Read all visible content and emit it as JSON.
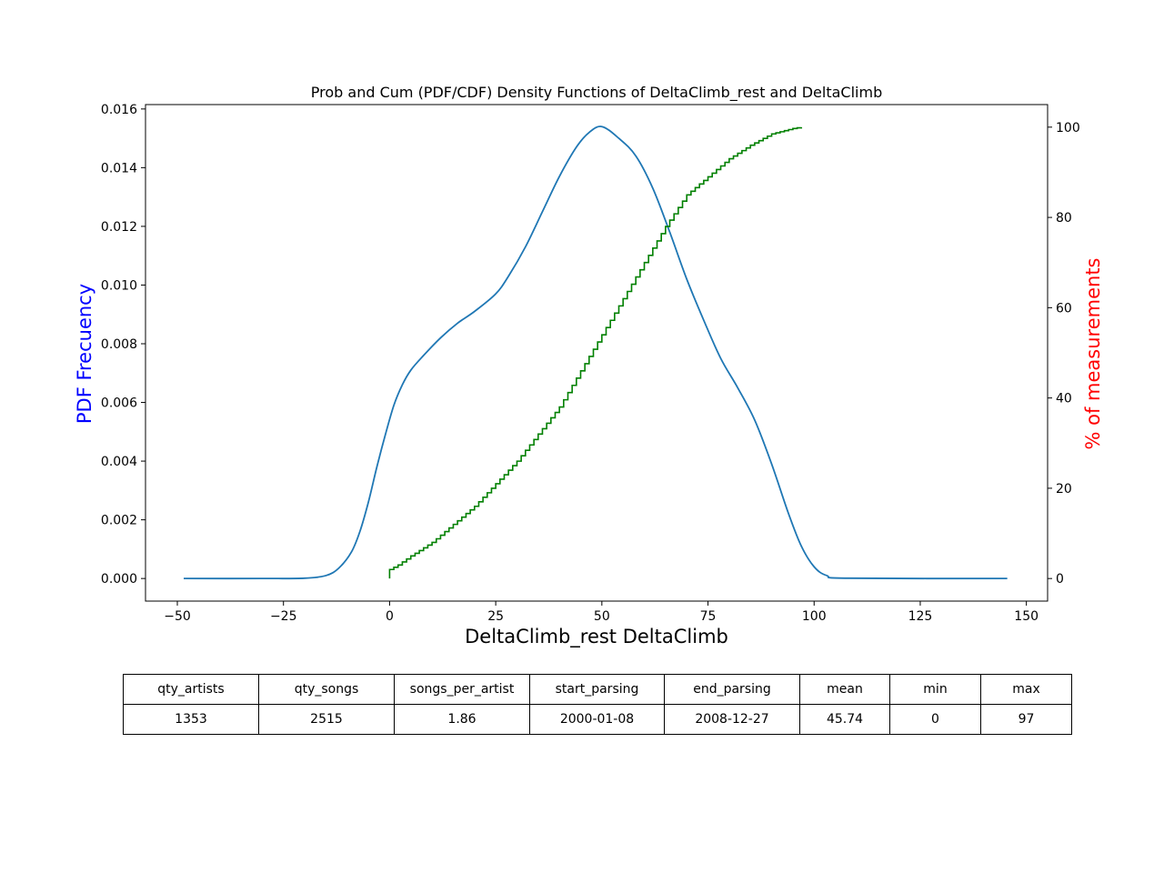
{
  "chart_data": {
    "type": "line",
    "title": "Prob and Cum (PDF/CDF) Density Functions of DeltaClimb_rest and DeltaClimb",
    "xlabel": "DeltaClimb_rest DeltaClimb",
    "ylabel_left": "PDF Frecuency",
    "ylabel_right": "% of measurements",
    "xlim": [
      -57.5,
      155
    ],
    "ylim_left": [
      -0.00077,
      0.01615
    ],
    "ylim_right": [
      -5,
      105
    ],
    "x_ticks": [
      -50,
      -25,
      0,
      25,
      50,
      75,
      100,
      125,
      150
    ],
    "x_tick_labels": [
      "−50",
      "−25",
      "0",
      "25",
      "50",
      "75",
      "100",
      "125",
      "150"
    ],
    "y_left_ticks": [
      0.0,
      0.002,
      0.004,
      0.006,
      0.008,
      0.01,
      0.012,
      0.014,
      0.016
    ],
    "y_left_tick_labels": [
      "0.000",
      "0.002",
      "0.004",
      "0.006",
      "0.008",
      "0.010",
      "0.012",
      "0.014",
      "0.016"
    ],
    "y_right_ticks": [
      0,
      20,
      40,
      60,
      80,
      100
    ],
    "y_right_tick_labels": [
      "0",
      "20",
      "40",
      "60",
      "80",
      "100"
    ],
    "grid": false,
    "series": [
      {
        "axis": "left",
        "color": "#1f77b4",
        "points": [
          [
            -48.5,
            0
          ],
          [
            -30,
            0
          ],
          [
            -20,
            1e-05
          ],
          [
            -15,
            0.0001
          ],
          [
            -12,
            0.00035
          ],
          [
            -9,
            0.0009
          ],
          [
            -7,
            0.0016
          ],
          [
            -5,
            0.0026
          ],
          [
            -3,
            0.0038
          ],
          [
            -1,
            0.0049
          ],
          [
            1,
            0.0059
          ],
          [
            3,
            0.0066
          ],
          [
            5,
            0.0071
          ],
          [
            8,
            0.0076
          ],
          [
            12,
            0.0082
          ],
          [
            16,
            0.0087
          ],
          [
            20,
            0.0091
          ],
          [
            25,
            0.0097
          ],
          [
            28,
            0.0103
          ],
          [
            32,
            0.0113
          ],
          [
            36,
            0.0125
          ],
          [
            40,
            0.0137
          ],
          [
            44,
            0.0147
          ],
          [
            47,
            0.0152
          ],
          [
            50,
            0.0154
          ],
          [
            54,
            0.015
          ],
          [
            58,
            0.0144
          ],
          [
            62,
            0.0133
          ],
          [
            66,
            0.0118
          ],
          [
            70,
            0.0102
          ],
          [
            74,
            0.0088
          ],
          [
            78,
            0.0075
          ],
          [
            82,
            0.0065
          ],
          [
            86,
            0.0054
          ],
          [
            90,
            0.0039
          ],
          [
            94,
            0.0022
          ],
          [
            97,
            0.0011
          ],
          [
            100,
            0.0004
          ],
          [
            103,
            0.0001
          ],
          [
            108,
            1e-05
          ],
          [
            145.5,
            0
          ]
        ]
      },
      {
        "axis": "right",
        "color": "#008000",
        "step": true,
        "x_range": [
          0,
          97
        ],
        "points": [
          [
            0,
            0
          ],
          [
            0,
            2
          ],
          [
            2,
            3
          ],
          [
            5,
            5
          ],
          [
            10,
            8
          ],
          [
            15,
            12
          ],
          [
            20,
            16
          ],
          [
            25,
            21
          ],
          [
            30,
            26
          ],
          [
            35,
            32
          ],
          [
            40,
            38
          ],
          [
            45,
            46
          ],
          [
            50,
            54
          ],
          [
            55,
            62
          ],
          [
            60,
            70
          ],
          [
            65,
            78
          ],
          [
            70,
            85
          ],
          [
            75,
            89
          ],
          [
            80,
            93
          ],
          [
            85,
            96
          ],
          [
            90,
            98.5
          ],
          [
            95,
            99.7
          ],
          [
            97,
            100
          ]
        ]
      }
    ]
  },
  "table": {
    "headers": [
      "qty_artists",
      "qty_songs",
      "songs_per_artist",
      "start_parsing",
      "end_parsing",
      "mean",
      "min",
      "max"
    ],
    "values": [
      "1353",
      "2515",
      "1.86",
      "2000-01-08",
      "2008-12-27",
      "45.74",
      "0",
      "97"
    ]
  }
}
